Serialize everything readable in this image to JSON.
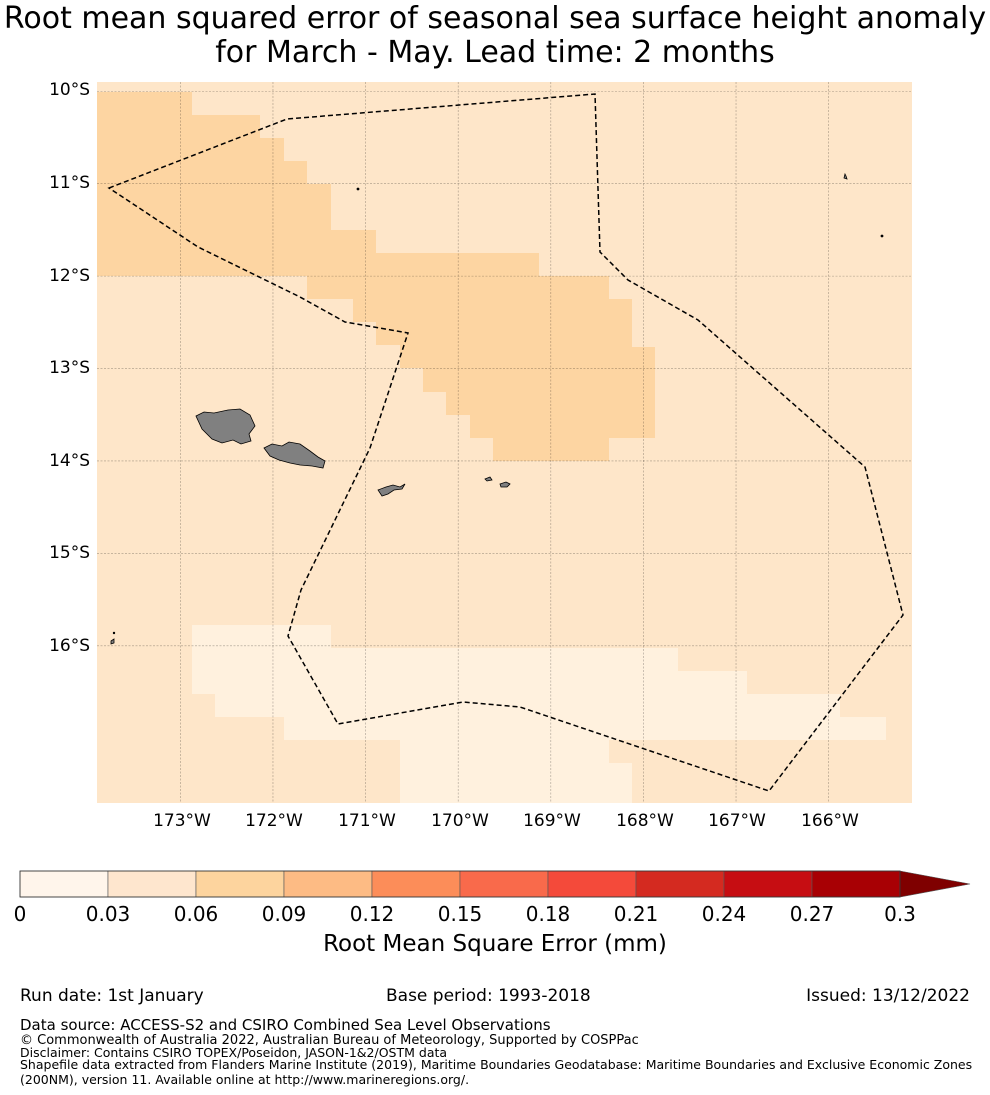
{
  "title": {
    "line1": "Root mean squared error of seasonal sea surface height anomaly",
    "line2": "for March - May. Lead time: 2 months"
  },
  "colors": {
    "level1": "#fff1de",
    "level2": "#fee6c9",
    "level3": "#fdd5a2",
    "land": "#808080",
    "cb": [
      "#fff5eb",
      "#fee6ce",
      "#fdd49e",
      "#fdbb84",
      "#fc8d59",
      "#f96a4b",
      "#f44a3a",
      "#d42a20",
      "#c60d12",
      "#a80004",
      "#7f0000"
    ]
  },
  "map": {
    "lat_ticks": [
      "10°S",
      "11°S",
      "12°S",
      "13°S",
      "14°S",
      "15°S",
      "16°S"
    ],
    "lon_ticks": [
      "173°W",
      "172°W",
      "171°W",
      "170°W",
      "169°W",
      "168°W",
      "167°W",
      "166°W"
    ],
    "extent": {
      "lon_min": -173.9,
      "lon_max": -165.1,
      "lat_min": -17.7,
      "lat_max": -9.9
    }
  },
  "colorbar": {
    "ticks": [
      "0",
      "0.03",
      "0.06",
      "0.09",
      "0.12",
      "0.15",
      "0.18",
      "0.21",
      "0.24",
      "0.27",
      "0.3"
    ],
    "label": "Root Mean Square Error (mm)",
    "extend": "max"
  },
  "footer": {
    "run_date": "Run date: 1st January",
    "base_period": "Base period: 1993-2018",
    "issued": "Issued: 13/12/2022",
    "data_source": "Data source: ACCESS-S2 and CSIRO Combined Sea Level Observations",
    "copyright": "© Commonwealth of Australia 2022, Australian Bureau of Meteorology, Supported by COSPPac",
    "disclaimer": "Disclaimer: Contains CSIRO TOPEX/Poseidon, JASON-1&2/OSTM data",
    "shapefile1": "Shapefile data extracted from Flanders Marine Institute (2019), Maritime Boundaries Geodatabase: Maritime Boundaries and Exclusive Economic Zones",
    "shapefile2": "(200NM), version 11. Available online at http://www.marineregions.org/."
  }
}
